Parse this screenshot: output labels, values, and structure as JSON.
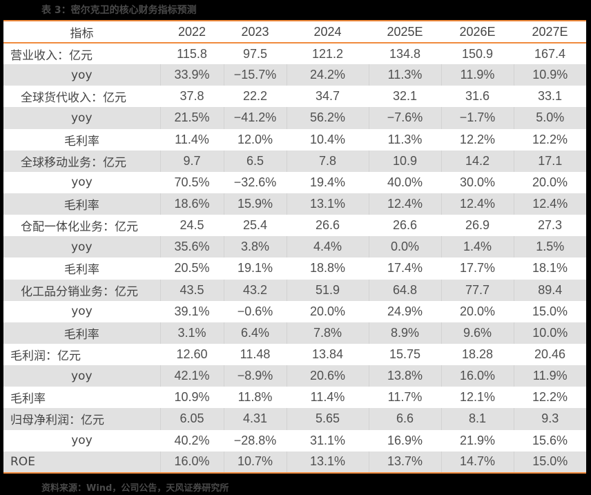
{
  "title": "表 3：密尔克卫的核心财务指标预测",
  "table": {
    "headers": [
      "指标",
      "2022",
      "2023",
      "2024",
      "2025E",
      "2026E",
      "2027E"
    ],
    "rows": [
      {
        "label": "营业收入：亿元",
        "indent": "left",
        "values": [
          "115.8",
          "97.5",
          "121.2",
          "134.8",
          "150.9",
          "167.4"
        ]
      },
      {
        "label": "yoy",
        "indent": "sub1",
        "values": [
          "33.9%",
          "−15.7%",
          "24.2%",
          "11.3%",
          "11.9%",
          "10.9%"
        ]
      },
      {
        "label": "全球货代收入：亿元",
        "indent": "sub2",
        "values": [
          "37.8",
          "22.2",
          "34.7",
          "32.1",
          "31.6",
          "33.1"
        ]
      },
      {
        "label": "yoy",
        "indent": "sub1",
        "values": [
          "21.5%",
          "−41.2%",
          "56.2%",
          "−7.6%",
          "−1.7%",
          "5.0%"
        ]
      },
      {
        "label": "毛利率",
        "indent": "sub1",
        "values": [
          "11.4%",
          "12.0%",
          "10.4%",
          "11.3%",
          "12.2%",
          "12.2%"
        ]
      },
      {
        "label": "全球移动业务：亿元",
        "indent": "sub2",
        "values": [
          "9.7",
          "6.5",
          "7.8",
          "10.9",
          "14.2",
          "17.1"
        ]
      },
      {
        "label": "yoy",
        "indent": "sub1",
        "values": [
          "70.5%",
          "−32.6%",
          "19.4%",
          "40.0%",
          "30.0%",
          "20.0%"
        ]
      },
      {
        "label": "毛利率",
        "indent": "sub1",
        "values": [
          "18.6%",
          "15.9%",
          "13.1%",
          "12.4%",
          "12.4%",
          "12.4%"
        ]
      },
      {
        "label": "仓配一体化业务：亿元",
        "indent": "sub2",
        "values": [
          "24.5",
          "25.4",
          "26.6",
          "26.6",
          "26.9",
          "27.3"
        ]
      },
      {
        "label": "yoy",
        "indent": "sub1",
        "values": [
          "35.6%",
          "3.8%",
          "4.4%",
          "0.0%",
          "1.4%",
          "1.5%"
        ]
      },
      {
        "label": "毛利率",
        "indent": "sub1",
        "values": [
          "20.5%",
          "19.1%",
          "18.8%",
          "17.4%",
          "17.7%",
          "18.1%"
        ]
      },
      {
        "label": "化工品分销业务：亿元",
        "indent": "sub2",
        "values": [
          "43.5",
          "43.2",
          "51.9",
          "64.8",
          "77.7",
          "89.4"
        ]
      },
      {
        "label": "yoy",
        "indent": "sub1",
        "values": [
          "39.1%",
          "−0.6%",
          "20.0%",
          "24.9%",
          "20.0%",
          "15.0%"
        ]
      },
      {
        "label": "毛利率",
        "indent": "sub1",
        "values": [
          "3.1%",
          "6.4%",
          "7.8%",
          "8.9%",
          "9.6%",
          "10.0%"
        ]
      },
      {
        "label": "毛利润：亿元",
        "indent": "left",
        "values": [
          "12.60",
          "11.48",
          "13.84",
          "15.75",
          "18.28",
          "20.46"
        ]
      },
      {
        "label": "yoy",
        "indent": "sub1",
        "values": [
          "42.1%",
          "−8.9%",
          "20.6%",
          "13.8%",
          "16.0%",
          "11.9%"
        ]
      },
      {
        "label": "毛利率",
        "indent": "left",
        "values": [
          "10.9%",
          "11.8%",
          "11.4%",
          "11.7%",
          "12.1%",
          "12.2%"
        ]
      },
      {
        "label": "归母净利润：亿元",
        "indent": "left",
        "values": [
          "6.05",
          "4.31",
          "5.65",
          "6.6",
          "8.1",
          "9.3"
        ]
      },
      {
        "label": "yoy",
        "indent": "sub1",
        "values": [
          "40.2%",
          "−28.8%",
          "31.1%",
          "16.9%",
          "21.9%",
          "15.6%"
        ]
      },
      {
        "label": "ROE",
        "indent": "left",
        "values": [
          "16.0%",
          "10.7%",
          "13.1%",
          "13.7%",
          "14.7%",
          "15.0%"
        ]
      }
    ]
  },
  "footer": "资料来源：Wind，公司公告，天风证券研究所",
  "colors": {
    "accent_line": "#f08a3c",
    "stripe": "#e1e1e1",
    "background": "#000000"
  }
}
